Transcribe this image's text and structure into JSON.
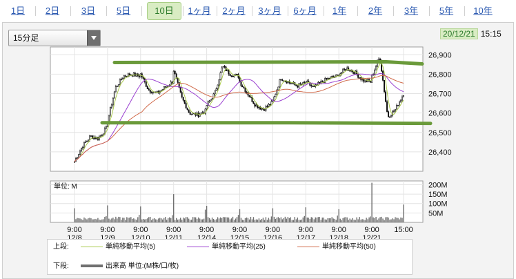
{
  "tabs": [
    {
      "label": "1日"
    },
    {
      "label": "2日"
    },
    {
      "label": "3日"
    },
    {
      "label": "5日"
    },
    {
      "label": "10日"
    },
    {
      "label": "1ヶ月"
    },
    {
      "label": "2ヶ月"
    },
    {
      "label": "3ヶ月"
    },
    {
      "label": "6ヶ月"
    },
    {
      "label": "1年"
    },
    {
      "label": "2年"
    },
    {
      "label": "3年"
    },
    {
      "label": "5年"
    },
    {
      "label": "10年"
    }
  ],
  "active_tab": "10日",
  "interval_select": {
    "value": "15分足"
  },
  "last_update": {
    "date": "20/12/21",
    "time": "15:15"
  },
  "legend": {
    "upper_label": "上段:",
    "lower_label": "下段:",
    "ma5": "単純移動平均(5)",
    "ma25": "単純移動平均(25)",
    "ma50": "単純移動平均(50)",
    "volume": "出来高 単位:(M株/口/枚)"
  },
  "colors": {
    "ma5": "#a8c84a",
    "ma25": "#9a3fd0",
    "ma50": "#d06a4a",
    "volume": "#707070",
    "candle": "#111111",
    "annotation": "#6a9a3a",
    "tab_active_bg": "#d9ecc3"
  },
  "chart_data": {
    "type": "candlestick",
    "price_axis": {
      "ticks": [
        26400,
        26500,
        26600,
        26700,
        26800,
        26900
      ],
      "ylim": [
        26300,
        26940
      ]
    },
    "volume_axis": {
      "unit_label": "単位: M",
      "ticks": [
        "50M",
        "100M",
        "150M",
        "200M"
      ],
      "tick_values": [
        50,
        100,
        150,
        200
      ],
      "ylim": [
        0,
        220
      ]
    },
    "x_labels": [
      {
        "time": "9:00",
        "date": "12/8"
      },
      {
        "time": "9:00",
        "date": "12/9"
      },
      {
        "time": "9:00",
        "date": "12/10"
      },
      {
        "time": "9:00",
        "date": "12/11"
      },
      {
        "time": "9:00",
        "date": "12/14"
      },
      {
        "time": "9:00",
        "date": "12/15"
      },
      {
        "time": "9:00",
        "date": "12/16"
      },
      {
        "time": "9:00",
        "date": "12/17"
      },
      {
        "time": "9:00",
        "date": "12/18"
      },
      {
        "time": "9:00",
        "date": "12/21"
      },
      {
        "time": "15:00",
        "date": ""
      }
    ],
    "days": [
      {
        "date": "12/8",
        "anchors": [
          26350,
          26430,
          26480,
          26470,
          26520
        ]
      },
      {
        "date": "12/9",
        "anchors": [
          26560,
          26730,
          26790,
          26800,
          26790
        ]
      },
      {
        "date": "12/10",
        "anchors": [
          26800,
          26720,
          26700,
          26730,
          26760
        ]
      },
      {
        "date": "12/11",
        "anchors": [
          26820,
          26680,
          26600,
          26590,
          26610
        ]
      },
      {
        "date": "12/14",
        "anchors": [
          26640,
          26700,
          26840,
          26800,
          26790
        ]
      },
      {
        "date": "12/15",
        "anchors": [
          26760,
          26700,
          26640,
          26620,
          26650
        ]
      },
      {
        "date": "12/16",
        "anchors": [
          26660,
          26780,
          26760,
          26740,
          26750
        ]
      },
      {
        "date": "12/17",
        "anchors": [
          26760,
          26730,
          26760,
          26780,
          26790
        ]
      },
      {
        "date": "12/18",
        "anchors": [
          26800,
          26830,
          26810,
          26770,
          26760
        ]
      },
      {
        "date": "12/21",
        "anchors": [
          26790,
          26890,
          26580,
          26620,
          26700
        ]
      }
    ],
    "volume_peaks_M": [
      75,
      90,
      85,
      150,
      88,
      70,
      75,
      80,
      70,
      210
    ],
    "series": [
      {
        "name": "単純移動平均(5)"
      },
      {
        "name": "単純移動平均(25)"
      },
      {
        "name": "単純移動平均(50)"
      }
    ],
    "annotations": {
      "resistance": 26860,
      "support": 26550
    },
    "grid": true
  }
}
